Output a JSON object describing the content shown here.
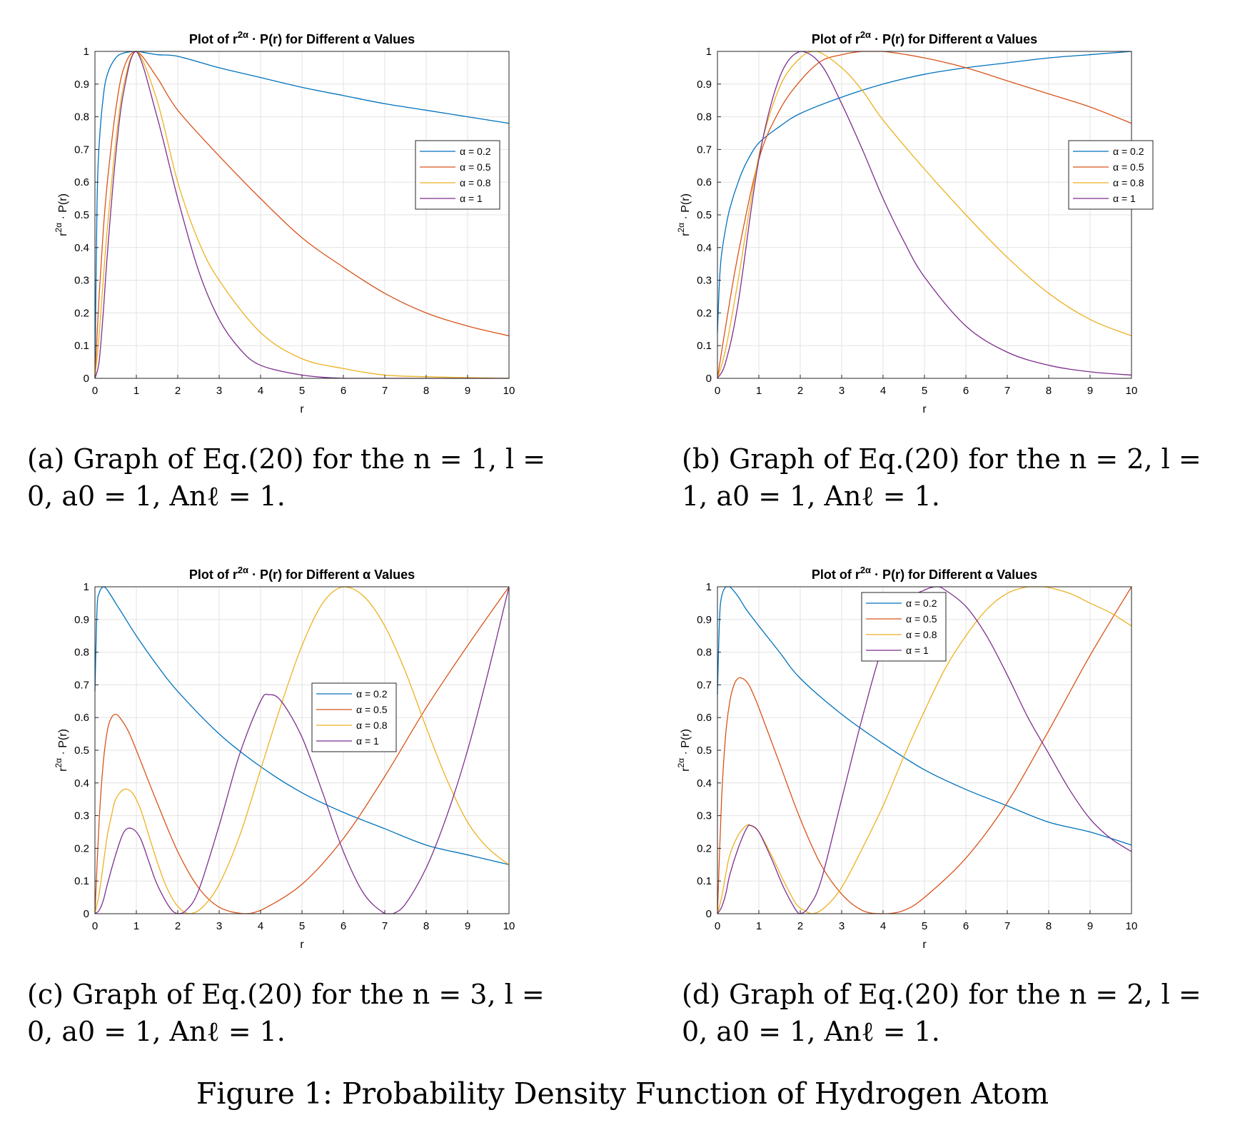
{
  "figure_caption": "Figure 1: Probability Density Function of Hydrogen Atom",
  "chart_data": [
    {
      "id": "a",
      "type": "line",
      "title": "Plot of r^{2α} · P(r) for Different α Values",
      "title_parts": {
        "pre": "Plot of r",
        "sup": "2α",
        "post": " · P(r) for Different α Values"
      },
      "xlabel": "r",
      "ylabel_parts": {
        "base": "r",
        "sup": "2α",
        "post": " · P(r)"
      },
      "xlim": [
        0,
        10
      ],
      "ylim": [
        0,
        1
      ],
      "xticks": [
        "0",
        "1",
        "2",
        "3",
        "4",
        "5",
        "6",
        "7",
        "8",
        "9",
        "10"
      ],
      "yticks": [
        "0",
        "0.1",
        "0.2",
        "0.3",
        "0.4",
        "0.5",
        "0.6",
        "0.7",
        "0.8",
        "0.9",
        "1"
      ],
      "grid": true,
      "legend_position": "right",
      "caption_lines": [
        "(a) Graph of Eq.(20) for the n = 1, l =",
        "0, a0 = 1, Anℓ = 1."
      ],
      "series": [
        {
          "name": "α = 0.2",
          "color": "#0072BD",
          "x": [
            0,
            0.05,
            0.1,
            0.2,
            0.3,
            0.5,
            0.7,
            1,
            1.5,
            2,
            3,
            4,
            5,
            6,
            7,
            8,
            9,
            10
          ],
          "y": [
            0,
            0.53,
            0.71,
            0.86,
            0.93,
            0.98,
            0.995,
            1,
            0.99,
            0.985,
            0.95,
            0.92,
            0.89,
            0.865,
            0.84,
            0.82,
            0.8,
            0.78
          ]
        },
        {
          "name": "α = 0.5",
          "color": "#D95319",
          "x": [
            0,
            0.1,
            0.2,
            0.3,
            0.5,
            0.7,
            1,
            1.5,
            2,
            3,
            4,
            5,
            6,
            7,
            8,
            9,
            10
          ],
          "y": [
            0,
            0.25,
            0.45,
            0.6,
            0.82,
            0.95,
            1,
            0.92,
            0.82,
            0.68,
            0.55,
            0.43,
            0.34,
            0.26,
            0.2,
            0.16,
            0.13
          ]
        },
        {
          "name": "α = 0.8",
          "color": "#EDB120",
          "x": [
            0,
            0.1,
            0.2,
            0.3,
            0.5,
            0.7,
            1,
            1.5,
            2,
            2.5,
            3,
            4,
            5,
            6,
            7,
            8,
            9,
            10
          ],
          "y": [
            0,
            0.13,
            0.3,
            0.46,
            0.72,
            0.9,
            1,
            0.85,
            0.6,
            0.42,
            0.3,
            0.14,
            0.06,
            0.03,
            0.01,
            0.005,
            0.002,
            0
          ]
        },
        {
          "name": "α = 1",
          "color": "#7E2F8E",
          "x": [
            0,
            0.1,
            0.2,
            0.3,
            0.5,
            0.7,
            1,
            1.5,
            2,
            2.5,
            3,
            3.5,
            4,
            5,
            6,
            7,
            8,
            9,
            10
          ],
          "y": [
            0,
            0.05,
            0.2,
            0.38,
            0.68,
            0.88,
            1,
            0.8,
            0.55,
            0.33,
            0.18,
            0.09,
            0.04,
            0.01,
            0,
            0,
            0,
            0,
            0
          ]
        }
      ]
    },
    {
      "id": "b",
      "type": "line",
      "title": "Plot of r^{2α} · P(r) for Different α Values",
      "title_parts": {
        "pre": "Plot of r",
        "sup": "2α",
        "post": " · P(r) for Different α Values"
      },
      "xlabel": "r",
      "ylabel_parts": {
        "base": "r",
        "sup": "2α",
        "post": " · P(r)"
      },
      "xlim": [
        0,
        10
      ],
      "ylim": [
        0,
        1
      ],
      "xticks": [
        "0",
        "1",
        "2",
        "3",
        "4",
        "5",
        "6",
        "7",
        "8",
        "9",
        "10"
      ],
      "yticks": [
        "0",
        "0.1",
        "0.2",
        "0.3",
        "0.4",
        "0.5",
        "0.6",
        "0.7",
        "0.8",
        "0.9",
        "1"
      ],
      "grid": true,
      "legend_position": "right",
      "caption_lines": [
        "(b) Graph of Eq.(20) for the n = 2, l =",
        "1, a0 = 1, Anℓ = 1."
      ],
      "series": [
        {
          "name": "α = 0.2",
          "color": "#0072BD",
          "x": [
            0,
            0.05,
            0.1,
            0.2,
            0.3,
            0.5,
            0.7,
            1,
            1.5,
            2,
            3,
            4,
            5,
            6,
            7,
            8,
            9,
            10
          ],
          "y": [
            0.14,
            0.3,
            0.38,
            0.46,
            0.52,
            0.6,
            0.66,
            0.72,
            0.77,
            0.81,
            0.86,
            0.9,
            0.93,
            0.95,
            0.965,
            0.98,
            0.99,
            1
          ]
        },
        {
          "name": "α = 0.5",
          "color": "#D95319",
          "x": [
            0,
            0.2,
            0.5,
            1,
            1.5,
            2,
            2.5,
            3,
            3.5,
            4,
            5,
            6,
            7,
            8,
            9,
            10
          ],
          "y": [
            0,
            0.16,
            0.38,
            0.67,
            0.82,
            0.91,
            0.97,
            0.99,
            1,
            1,
            0.98,
            0.95,
            0.91,
            0.87,
            0.83,
            0.78
          ]
        },
        {
          "name": "α = 0.8",
          "color": "#EDB120",
          "x": [
            0,
            0.2,
            0.5,
            1,
            1.5,
            2,
            2.4,
            3,
            3.5,
            4,
            5,
            6,
            7,
            8,
            9,
            10
          ],
          "y": [
            0,
            0.09,
            0.3,
            0.68,
            0.89,
            0.98,
            1,
            0.95,
            0.88,
            0.79,
            0.64,
            0.5,
            0.37,
            0.26,
            0.18,
            0.13
          ]
        },
        {
          "name": "α = 1",
          "color": "#7E2F8E",
          "x": [
            0,
            0.2,
            0.5,
            1,
            1.5,
            2,
            2.5,
            3,
            3.5,
            4,
            4.5,
            5,
            6,
            7,
            8,
            9,
            10
          ],
          "y": [
            0,
            0.05,
            0.23,
            0.67,
            0.92,
            1,
            0.96,
            0.84,
            0.7,
            0.55,
            0.42,
            0.31,
            0.16,
            0.08,
            0.04,
            0.02,
            0.01
          ]
        }
      ]
    },
    {
      "id": "c",
      "type": "line",
      "title": "Plot of r^{2α} · P(r) for Different α Values",
      "title_parts": {
        "pre": "Plot of r",
        "sup": "2α",
        "post": " · P(r) for Different α Values"
      },
      "xlabel": "r",
      "ylabel_parts": {
        "base": "r",
        "sup": "2α",
        "post": " · P(r)"
      },
      "xlim": [
        0,
        10
      ],
      "ylim": [
        0,
        1
      ],
      "xticks": [
        "0",
        "1",
        "2",
        "3",
        "4",
        "5",
        "6",
        "7",
        "8",
        "9",
        "10"
      ],
      "yticks": [
        "0",
        "0.1",
        "0.2",
        "0.3",
        "0.4",
        "0.5",
        "0.6",
        "0.7",
        "0.8",
        "0.9",
        "1"
      ],
      "grid": true,
      "legend_position": "center",
      "caption_lines": [
        "(c) Graph of Eq.(20) for the n = 3, l =",
        "0, a0 = 1, Anℓ = 1."
      ],
      "series": [
        {
          "name": "α = 0.2",
          "color": "#0072BD",
          "x": [
            0,
            0.05,
            0.1,
            0.2,
            0.3,
            0.5,
            0.7,
            1,
            1.5,
            2,
            3,
            4,
            5,
            6,
            7,
            8,
            9,
            10
          ],
          "y": [
            0.68,
            0.93,
            0.98,
            1,
            0.99,
            0.95,
            0.91,
            0.85,
            0.76,
            0.68,
            0.55,
            0.45,
            0.37,
            0.31,
            0.26,
            0.21,
            0.18,
            0.15
          ]
        },
        {
          "name": "α = 0.5",
          "color": "#D95319",
          "x": [
            0,
            0.1,
            0.2,
            0.3,
            0.4,
            0.5,
            0.6,
            0.8,
            1,
            1.5,
            2,
            2.5,
            3,
            3.6,
            4,
            5,
            6,
            7,
            8,
            9,
            10
          ],
          "y": [
            0,
            0.28,
            0.46,
            0.56,
            0.6,
            0.61,
            0.6,
            0.56,
            0.5,
            0.34,
            0.19,
            0.08,
            0.02,
            0,
            0.01,
            0.09,
            0.23,
            0.42,
            0.63,
            0.82,
            1
          ]
        },
        {
          "name": "α = 0.8",
          "color": "#EDB120",
          "x": [
            0,
            0.1,
            0.2,
            0.3,
            0.4,
            0.5,
            0.7,
            0.9,
            1.1,
            1.3,
            1.5,
            1.7,
            1.9,
            2.1,
            2.3,
            2.6,
            3,
            3.5,
            4,
            4.5,
            5,
            5.5,
            6,
            6.5,
            7,
            7.5,
            8,
            8.5,
            9,
            9.5,
            10
          ],
          "y": [
            0,
            0.06,
            0.15,
            0.24,
            0.3,
            0.35,
            0.38,
            0.37,
            0.32,
            0.24,
            0.16,
            0.09,
            0.04,
            0.01,
            0,
            0.02,
            0.09,
            0.24,
            0.44,
            0.64,
            0.82,
            0.95,
            1,
            0.97,
            0.88,
            0.74,
            0.57,
            0.41,
            0.28,
            0.2,
            0.15
          ]
        },
        {
          "name": "α = 1",
          "color": "#7E2F8E",
          "x": [
            0,
            0.1,
            0.2,
            0.3,
            0.5,
            0.7,
            0.9,
            1.1,
            1.3,
            1.5,
            1.8,
            2,
            2.2,
            2.5,
            3,
            3.5,
            4,
            4.2,
            4.5,
            5,
            5.5,
            6,
            6.5,
            7,
            7.2,
            7.5,
            8,
            8.5,
            9,
            9.5,
            10
          ],
          "y": [
            0,
            0.01,
            0.04,
            0.09,
            0.18,
            0.25,
            0.26,
            0.23,
            0.16,
            0.09,
            0.02,
            0,
            0.01,
            0.07,
            0.27,
            0.49,
            0.65,
            0.67,
            0.65,
            0.54,
            0.37,
            0.19,
            0.06,
            0,
            0,
            0.03,
            0.14,
            0.3,
            0.5,
            0.74,
            1
          ]
        }
      ]
    },
    {
      "id": "d",
      "type": "line",
      "title": "Plot of r^{2α} · P(r) for Different α Values",
      "title_parts": {
        "pre": "Plot of r",
        "sup": "2α",
        "post": " · P(r) for Different α Values"
      },
      "xlabel": "r",
      "ylabel_parts": {
        "base": "r",
        "sup": "2α",
        "post": " · P(r)"
      },
      "xlim": [
        0,
        10
      ],
      "ylim": [
        0,
        1
      ],
      "xticks": [
        "0",
        "1",
        "2",
        "3",
        "4",
        "5",
        "6",
        "7",
        "8",
        "9",
        "10"
      ],
      "yticks": [
        "0",
        "0.1",
        "0.2",
        "0.3",
        "0.4",
        "0.5",
        "0.6",
        "0.7",
        "0.8",
        "0.9",
        "1"
      ],
      "grid": true,
      "legend_position": "top-left",
      "caption_lines": [
        "(d) Graph of Eq.(20) for the n = 2, l =",
        "0, a0 = 1, Anℓ = 1."
      ],
      "series": [
        {
          "name": "α = 0.2",
          "color": "#0072BD",
          "x": [
            0,
            0.05,
            0.1,
            0.2,
            0.3,
            0.5,
            0.7,
            1,
            1.5,
            2,
            3,
            4,
            5,
            6,
            7,
            8,
            9,
            10
          ],
          "y": [
            0.67,
            0.9,
            0.97,
            1,
            1,
            0.97,
            0.93,
            0.88,
            0.8,
            0.72,
            0.61,
            0.52,
            0.44,
            0.38,
            0.33,
            0.28,
            0.25,
            0.21
          ]
        },
        {
          "name": "α = 0.5",
          "color": "#D95319",
          "x": [
            0,
            0.1,
            0.2,
            0.3,
            0.4,
            0.5,
            0.6,
            0.7,
            0.8,
            1,
            1.5,
            2,
            2.5,
            3,
            3.5,
            4,
            4.5,
            5,
            6,
            7,
            8,
            9,
            10
          ],
          "y": [
            0,
            0.35,
            0.55,
            0.65,
            0.7,
            0.72,
            0.72,
            0.71,
            0.69,
            0.63,
            0.46,
            0.29,
            0.15,
            0.06,
            0.01,
            0,
            0.01,
            0.05,
            0.17,
            0.34,
            0.56,
            0.79,
            1
          ]
        },
        {
          "name": "α = 0.8",
          "color": "#EDB120",
          "x": [
            0,
            0.1,
            0.2,
            0.3,
            0.5,
            0.7,
            0.8,
            1,
            1.3,
            1.6,
            1.9,
            2.1,
            2.3,
            2.6,
            3,
            3.5,
            4,
            4.5,
            5,
            5.5,
            6,
            6.5,
            7,
            7.5,
            7.9,
            8.5,
            9,
            9.5,
            10
          ],
          "y": [
            0,
            0.05,
            0.12,
            0.18,
            0.24,
            0.27,
            0.27,
            0.25,
            0.18,
            0.1,
            0.03,
            0.01,
            0,
            0.02,
            0.08,
            0.2,
            0.33,
            0.48,
            0.62,
            0.75,
            0.85,
            0.93,
            0.98,
            1,
            1,
            0.98,
            0.95,
            0.92,
            0.88
          ]
        },
        {
          "name": "α = 1",
          "color": "#7E2F8E",
          "x": [
            0,
            0.1,
            0.2,
            0.3,
            0.5,
            0.7,
            0.8,
            1,
            1.3,
            1.6,
            1.9,
            2,
            2.2,
            2.5,
            3,
            3.5,
            4,
            4.5,
            5,
            5.3,
            5.5,
            6,
            6.5,
            7,
            7.5,
            8,
            8.5,
            9,
            9.5,
            10
          ],
          "y": [
            0,
            0.02,
            0.06,
            0.12,
            0.2,
            0.26,
            0.27,
            0.25,
            0.17,
            0.08,
            0.01,
            0,
            0.02,
            0.1,
            0.35,
            0.6,
            0.82,
            0.95,
            0.99,
            1,
            0.99,
            0.94,
            0.85,
            0.73,
            0.6,
            0.49,
            0.38,
            0.29,
            0.23,
            0.19
          ]
        }
      ]
    }
  ]
}
